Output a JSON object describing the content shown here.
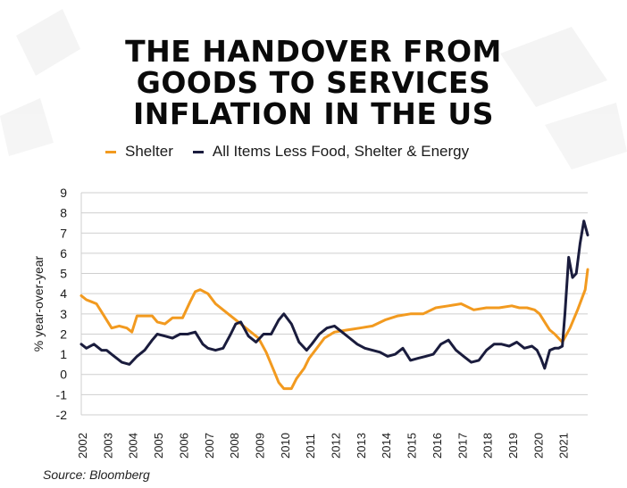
{
  "title_lines": [
    "THE HANDOVER FROM",
    "GOODS TO SERVICES",
    "INFLATION IN THE US"
  ],
  "source": "Source: Bloomberg",
  "colors": {
    "shelter": "#f29a1f",
    "core": "#1a1c3d",
    "grid": "#cfcfcf",
    "text": "#1a1a1a"
  },
  "chart_data": {
    "type": "line",
    "title": "THE HANDOVER FROM GOODS TO SERVICES INFLATION IN THE US",
    "xlabel": "",
    "ylabel": "% year-over-year",
    "xlim": [
      2002,
      2022
    ],
    "ylim": [
      -2,
      9
    ],
    "yticks": [
      9,
      8,
      7,
      6,
      5,
      4,
      3,
      2,
      1,
      0,
      -1,
      -2
    ],
    "xticks": [
      "2002",
      "2003",
      "2004",
      "2005",
      "2006",
      "2007",
      "2008",
      "2009",
      "2010",
      "2011",
      "2012",
      "2013",
      "2014",
      "2015",
      "2016",
      "2017",
      "2018",
      "2019",
      "2020",
      "2021"
    ],
    "legend_position": "top",
    "grid": true,
    "series": [
      {
        "name": "Shelter",
        "color": "#f29a1f",
        "x": [
          2002.0,
          2002.2,
          2002.4,
          2002.6,
          2002.8,
          2003.0,
          2003.2,
          2003.5,
          2003.8,
          2004.0,
          2004.2,
          2004.5,
          2004.8,
          2005.0,
          2005.3,
          2005.6,
          2006.0,
          2006.3,
          2006.5,
          2006.7,
          2007.0,
          2007.3,
          2007.6,
          2008.0,
          2008.3,
          2008.6,
          2009.0,
          2009.3,
          2009.6,
          2009.8,
          2010.0,
          2010.3,
          2010.5,
          2010.8,
          2011.0,
          2011.3,
          2011.6,
          2012.0,
          2012.5,
          2013.0,
          2013.5,
          2014.0,
          2014.5,
          2015.0,
          2015.5,
          2016.0,
          2016.5,
          2017.0,
          2017.5,
          2018.0,
          2018.5,
          2019.0,
          2019.3,
          2019.6,
          2019.9,
          2020.1,
          2020.3,
          2020.5,
          2020.7,
          2021.0,
          2021.3,
          2021.6,
          2021.9,
          2022.0
        ],
        "values": [
          3.9,
          3.7,
          3.6,
          3.5,
          3.1,
          2.7,
          2.3,
          2.4,
          2.3,
          2.1,
          2.9,
          2.9,
          2.9,
          2.6,
          2.5,
          2.8,
          2.8,
          3.6,
          4.1,
          4.2,
          4.0,
          3.5,
          3.2,
          2.8,
          2.5,
          2.2,
          1.8,
          1.1,
          0.2,
          -0.4,
          -0.7,
          -0.7,
          -0.2,
          0.3,
          0.8,
          1.3,
          1.8,
          2.1,
          2.2,
          2.3,
          2.4,
          2.7,
          2.9,
          3.0,
          3.0,
          3.3,
          3.4,
          3.5,
          3.2,
          3.3,
          3.3,
          3.4,
          3.3,
          3.3,
          3.2,
          3.0,
          2.6,
          2.2,
          2.0,
          1.6,
          2.3,
          3.2,
          4.2,
          5.2
        ]
      },
      {
        "name": "All Items Less Food, Shelter & Energy",
        "color": "#1a1c3d",
        "x": [
          2002.0,
          2002.2,
          2002.5,
          2002.8,
          2003.0,
          2003.3,
          2003.6,
          2003.9,
          2004.2,
          2004.5,
          2004.8,
          2005.0,
          2005.3,
          2005.6,
          2005.9,
          2006.2,
          2006.5,
          2006.8,
          2007.0,
          2007.3,
          2007.6,
          2007.9,
          2008.1,
          2008.3,
          2008.6,
          2008.9,
          2009.2,
          2009.5,
          2009.8,
          2010.0,
          2010.3,
          2010.6,
          2010.9,
          2011.1,
          2011.4,
          2011.7,
          2012.0,
          2012.3,
          2012.6,
          2012.9,
          2013.2,
          2013.5,
          2013.8,
          2014.1,
          2014.4,
          2014.7,
          2015.0,
          2015.3,
          2015.6,
          2015.9,
          2016.2,
          2016.5,
          2016.8,
          2017.1,
          2017.4,
          2017.7,
          2018.0,
          2018.3,
          2018.6,
          2018.9,
          2019.2,
          2019.5,
          2019.8,
          2020.0,
          2020.15,
          2020.3,
          2020.5,
          2020.7,
          2020.85,
          2021.0,
          2021.1,
          2021.25,
          2021.4,
          2021.55,
          2021.7,
          2021.85,
          2022.0
        ],
        "values": [
          1.5,
          1.3,
          1.5,
          1.2,
          1.2,
          0.9,
          0.6,
          0.5,
          0.9,
          1.2,
          1.7,
          2.0,
          1.9,
          1.8,
          2.0,
          2.0,
          2.1,
          1.5,
          1.3,
          1.2,
          1.3,
          2.0,
          2.5,
          2.6,
          1.9,
          1.6,
          2.0,
          2.0,
          2.7,
          3.0,
          2.5,
          1.6,
          1.2,
          1.5,
          2.0,
          2.3,
          2.4,
          2.1,
          1.8,
          1.5,
          1.3,
          1.2,
          1.1,
          0.9,
          1.0,
          1.3,
          0.7,
          0.8,
          0.9,
          1.0,
          1.5,
          1.7,
          1.2,
          0.9,
          0.6,
          0.7,
          1.2,
          1.5,
          1.5,
          1.4,
          1.6,
          1.3,
          1.4,
          1.2,
          0.8,
          0.3,
          1.2,
          1.3,
          1.3,
          1.4,
          3.0,
          5.8,
          4.8,
          5.0,
          6.5,
          7.6,
          6.9
        ]
      }
    ]
  }
}
